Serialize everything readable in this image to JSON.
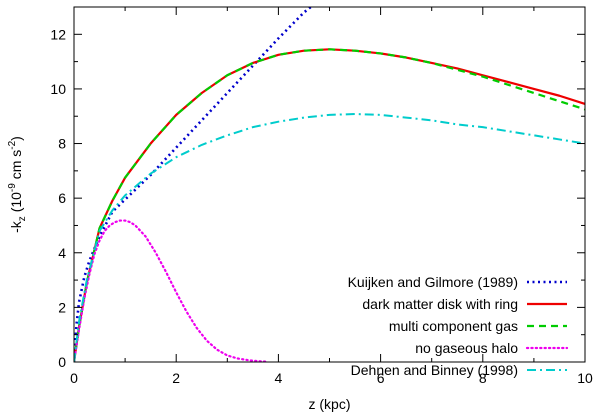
{
  "chart_data": {
    "type": "line",
    "title": "",
    "xlabel": "z (kpc)",
    "ylabel": {
      "prefix": "-k",
      "sub": "z",
      "mid": " (10",
      "sup": "-9",
      "mid2": " cm s",
      "sup2": "-2",
      "suffix": ")"
    },
    "xlim": [
      0,
      10
    ],
    "ylim": [
      0,
      13
    ],
    "xticks": [
      0,
      2,
      4,
      6,
      8,
      10
    ],
    "yticks": [
      0,
      2,
      4,
      6,
      8,
      10,
      12
    ],
    "xtick_labels": [
      "0",
      "2",
      "4",
      "6",
      "8",
      "10"
    ],
    "ytick_labels": [
      "0",
      "2",
      "4",
      "6",
      "8",
      "10",
      "12"
    ],
    "grid": false,
    "legend_position": "bottom-right",
    "series": [
      {
        "name": "Kuijken and Gilmore (1989)",
        "color": "#0000cc",
        "dash": "dotted-bold",
        "x": [
          0,
          0.05,
          0.1,
          0.2,
          0.3,
          0.5,
          0.75,
          1,
          1.5,
          2,
          2.5,
          3,
          3.5,
          4,
          4.5,
          4.7
        ],
        "y": [
          0,
          1.4,
          2.2,
          3.1,
          3.7,
          4.6,
          5.5,
          5.95,
          6.85,
          7.85,
          8.85,
          9.85,
          10.85,
          11.85,
          12.8,
          13.1
        ]
      },
      {
        "name": "dark matter disk with ring",
        "color": "#ee0000",
        "dash": "solid",
        "x": [
          0,
          0.1,
          0.25,
          0.5,
          0.75,
          1,
          1.5,
          2,
          2.5,
          3,
          3.5,
          4,
          4.5,
          5,
          5.5,
          6,
          6.5,
          7,
          7.5,
          8,
          8.5,
          9,
          9.5,
          10
        ],
        "y": [
          0,
          1.3,
          2.9,
          4.9,
          5.9,
          6.75,
          8.0,
          9.05,
          9.85,
          10.5,
          10.95,
          11.25,
          11.4,
          11.45,
          11.4,
          11.3,
          11.15,
          10.95,
          10.75,
          10.5,
          10.25,
          10.0,
          9.75,
          9.45
        ]
      },
      {
        "name": "multi component gas",
        "color": "#00cc00",
        "dash": "dashed",
        "x": [
          0,
          0.1,
          0.25,
          0.5,
          0.75,
          1,
          1.5,
          2,
          2.5,
          3,
          3.5,
          4,
          4.5,
          5,
          5.5,
          6,
          6.5,
          7,
          7.5,
          8,
          8.5,
          9,
          9.5,
          10
        ],
        "y": [
          0,
          1.3,
          2.9,
          4.9,
          5.9,
          6.75,
          8.0,
          9.05,
          9.85,
          10.5,
          10.95,
          11.25,
          11.4,
          11.45,
          11.4,
          11.3,
          11.15,
          10.95,
          10.7,
          10.45,
          10.15,
          9.85,
          9.55,
          9.25
        ]
      },
      {
        "name": "no gaseous halo",
        "color": "#ee00ee",
        "dash": "dotted",
        "x": [
          0,
          0.1,
          0.2,
          0.3,
          0.4,
          0.5,
          0.6,
          0.7,
          0.8,
          0.9,
          1.0,
          1.1,
          1.2,
          1.4,
          1.6,
          1.8,
          2.0,
          2.2,
          2.4,
          2.6,
          2.8,
          3.0,
          3.2,
          3.4,
          3.6,
          3.8
        ],
        "y": [
          0,
          1.2,
          2.3,
          3.2,
          3.95,
          4.45,
          4.8,
          5.0,
          5.12,
          5.18,
          5.18,
          5.12,
          5.0,
          4.6,
          4.0,
          3.3,
          2.55,
          1.85,
          1.25,
          0.78,
          0.45,
          0.24,
          0.13,
          0.07,
          0.03,
          0.01
        ]
      },
      {
        "name": "Dehnen and Binney (1998)",
        "color": "#00cccc",
        "dash": "dashdot",
        "x": [
          0,
          0.1,
          0.25,
          0.5,
          0.75,
          1,
          1.5,
          2,
          2.5,
          3,
          3.5,
          4,
          4.5,
          5,
          5.5,
          6,
          6.5,
          7,
          7.5,
          8,
          8.5,
          9,
          9.5,
          10
        ],
        "y": [
          0,
          1.5,
          3.0,
          4.8,
          5.55,
          6.1,
          6.9,
          7.5,
          7.95,
          8.3,
          8.6,
          8.8,
          8.95,
          9.05,
          9.08,
          9.05,
          8.95,
          8.85,
          8.7,
          8.6,
          8.45,
          8.3,
          8.15,
          8.0
        ]
      }
    ]
  }
}
